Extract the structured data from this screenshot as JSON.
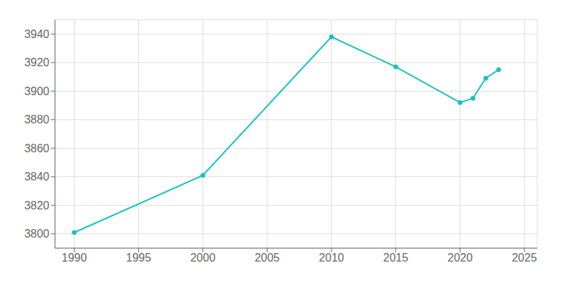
{
  "chart_data": {
    "type": "line",
    "x": [
      1990,
      2000,
      2010,
      2015,
      2020,
      2021,
      2022,
      2023
    ],
    "values": [
      3801,
      3841,
      3938,
      3917,
      3892,
      3895,
      3909,
      3915
    ],
    "color": "#17C3C3",
    "marker": "circle",
    "xlim": [
      1988.5,
      2026
    ],
    "ylim": [
      3790,
      3950
    ],
    "xticks": [
      1990,
      1995,
      2000,
      2005,
      2010,
      2015,
      2020,
      2025
    ],
    "yticks": [
      3800,
      3820,
      3840,
      3860,
      3880,
      3900,
      3920,
      3940
    ],
    "grid": true
  }
}
